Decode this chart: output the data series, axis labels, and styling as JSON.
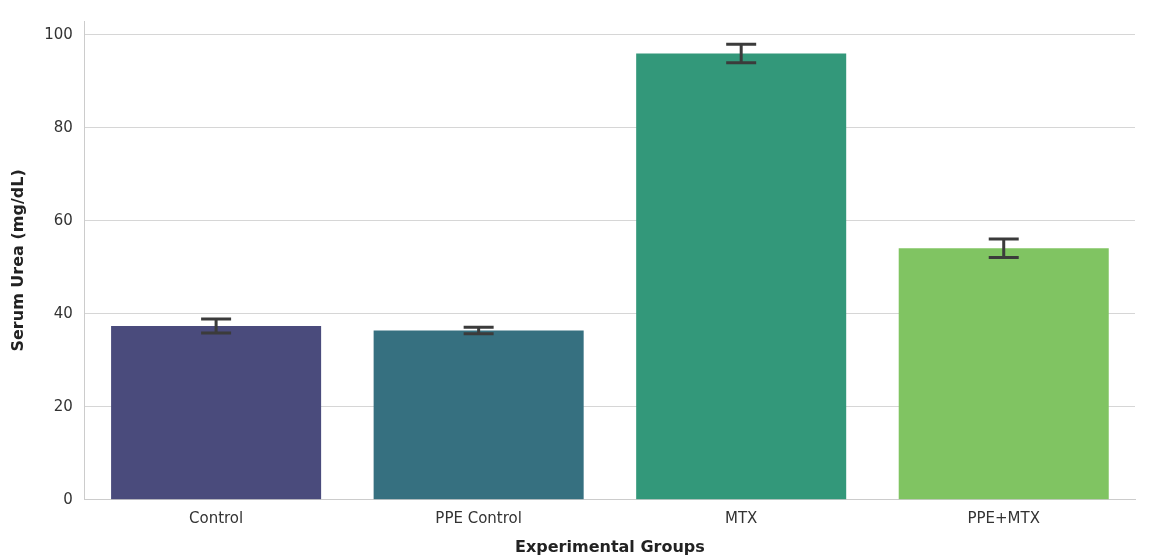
{
  "chart_data": {
    "type": "bar",
    "xlabel": "Experimental Groups",
    "ylabel": "Serum Urea (mg/dL)",
    "categories": [
      "Control",
      "PPE Control",
      "MTX",
      "PPE+MTX"
    ],
    "values": [
      37.4,
      36.4,
      96.0,
      54.1
    ],
    "errors": [
      1.5,
      0.7,
      2.0,
      2.0
    ],
    "colors": [
      "#4a4b7c",
      "#367080",
      "#33987a",
      "#80c462"
    ],
    "ylim": [
      0,
      103
    ],
    "yticks": [
      0,
      20,
      40,
      60,
      80,
      100
    ],
    "grid": "y"
  }
}
